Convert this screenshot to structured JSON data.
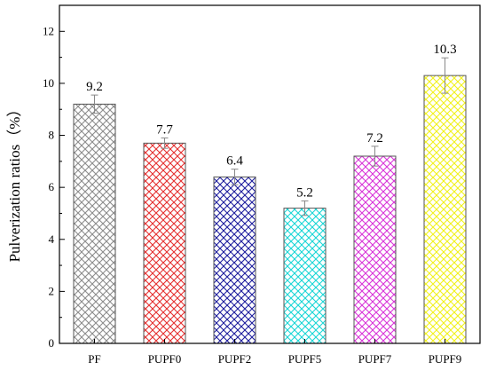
{
  "chart_data": {
    "type": "bar",
    "categories": [
      "PF",
      "PUPF0",
      "PUPF2",
      "PUPF5",
      "PUPF7",
      "PUPF9"
    ],
    "values": [
      9.2,
      7.7,
      6.4,
      5.2,
      7.2,
      10.3
    ],
    "value_labels": [
      "9.2",
      "7.7",
      "6.4",
      "5.2",
      "7.2",
      "10.3"
    ],
    "errors": [
      0.35,
      0.2,
      0.3,
      0.28,
      0.38,
      0.68
    ],
    "colors": [
      "#8c8c8c",
      "#e53030",
      "#1e1e9e",
      "#19d6d6",
      "#d935d9",
      "#f2f21c"
    ],
    "pattern": "crosshatch",
    "ylabel": "Pulverization ratios（%）",
    "xlabel": "",
    "ylim": [
      0,
      13
    ],
    "yticks": [
      0,
      2,
      4,
      6,
      8,
      10,
      12
    ],
    "ytick_labels": [
      "0",
      "2",
      "4",
      "6",
      "8",
      "10",
      "12"
    ],
    "grid": false
  }
}
